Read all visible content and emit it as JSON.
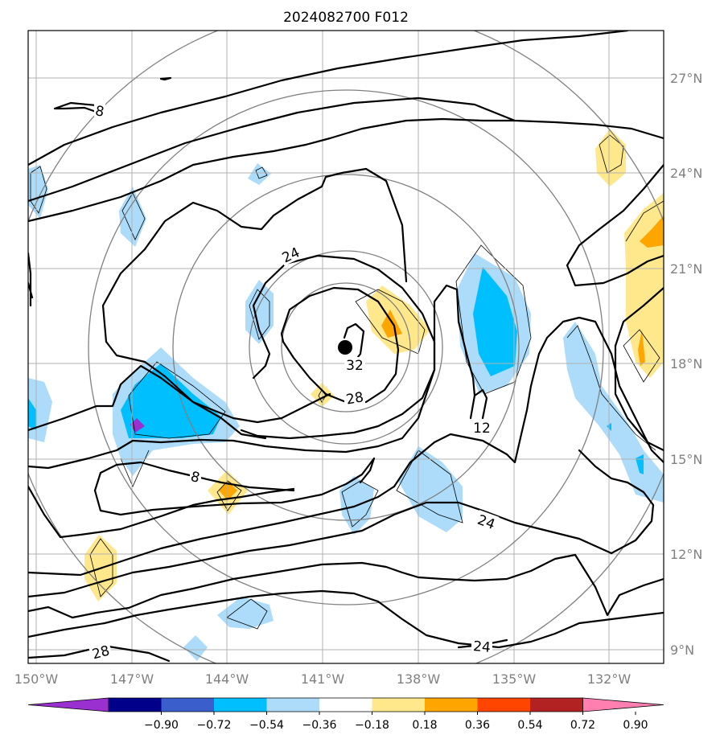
{
  "title": "2024082700 F012",
  "lon_labels": [
    "150°W",
    "147°W",
    "144°W",
    "141°W",
    "138°W",
    "135°W",
    "132°W"
  ],
  "lat_labels": [
    "27°N",
    "24°N",
    "21°N",
    "18°N",
    "15°N",
    "12°N",
    "9°N"
  ],
  "contour_labels": [
    "8",
    "24",
    "32",
    "28",
    "12",
    "8",
    "24",
    "24",
    "28"
  ],
  "colorbar": {
    "ticks": [
      "−0.90",
      "−0.72",
      "−0.54",
      "−0.36",
      "−0.18",
      "0.18",
      "0.36",
      "0.54",
      "0.72",
      "0.90"
    ],
    "colors": [
      "#9a30d0",
      "#00008b",
      "#3a5fcd",
      "#00bfff",
      "#acdcfa",
      "#ffffff",
      "#ffe88c",
      "#ffa500",
      "#ff4500",
      "#b22222",
      "#ff80b0"
    ]
  },
  "chart_data": {
    "type": "map",
    "title": "2024082700 F012",
    "lon_range": [
      -150,
      -130
    ],
    "lat_range": [
      8.5,
      28.5
    ],
    "storm_center": {
      "lon": -140.3,
      "lat": 18.5
    }
  }
}
